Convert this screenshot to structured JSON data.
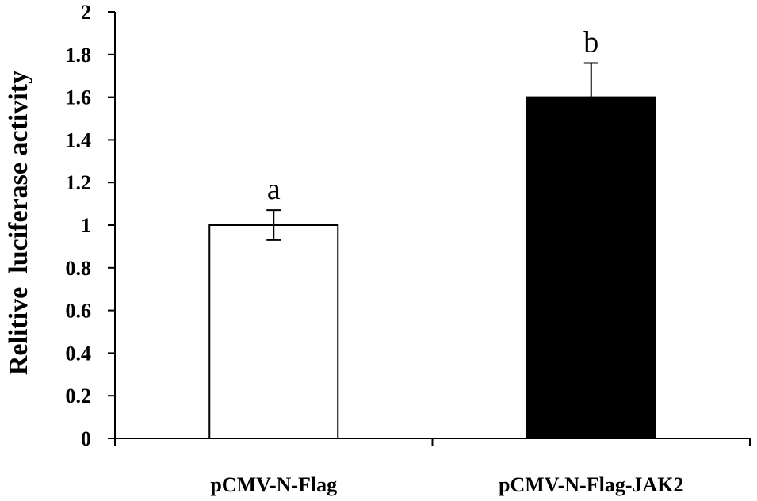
{
  "chart_data": {
    "type": "bar",
    "title": "",
    "xlabel": "",
    "ylabel": "Relitive  luciferase activity",
    "categories": [
      "pCMV-N-Flag",
      "pCMV-N-Flag-JAK2"
    ],
    "values": [
      1.0,
      1.6
    ],
    "errors": [
      0.07,
      0.16
    ],
    "significance_labels": [
      "a",
      "b"
    ],
    "bar_colors": [
      "#ffffff",
      "#000000"
    ],
    "bar_edge_color": "#000000",
    "ylim": [
      0,
      2
    ],
    "yticks": [
      0,
      0.2,
      0.4,
      0.6,
      0.8,
      1,
      1.2,
      1.4,
      1.6,
      1.8,
      2
    ],
    "ytick_labels": [
      "0",
      "0.2",
      "0.4",
      "0.6",
      "0.8",
      "1",
      "1.2",
      "1.4",
      "1.6",
      "1.8",
      "2"
    ],
    "grid": false,
    "legend": "none"
  }
}
